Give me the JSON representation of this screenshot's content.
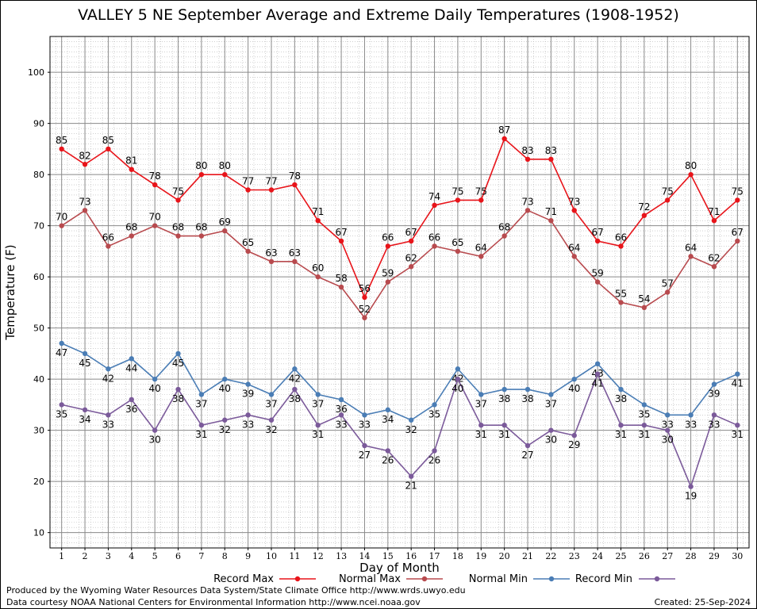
{
  "chart_data": {
    "type": "line",
    "title": "VALLEY 5 NE September Average and Extreme Daily Temperatures (1908-1952)",
    "xlabel": "Day of Month",
    "ylabel": "Temperature (F)",
    "ylim": [
      7,
      107
    ],
    "yticks": [
      10,
      20,
      30,
      40,
      50,
      60,
      70,
      80,
      90,
      100
    ],
    "grid": true,
    "legend_position": "bottom",
    "x": [
      1,
      2,
      3,
      4,
      5,
      6,
      7,
      8,
      9,
      10,
      11,
      12,
      13,
      14,
      15,
      16,
      17,
      18,
      19,
      20,
      21,
      22,
      23,
      24,
      25,
      26,
      27,
      28,
      29,
      30
    ],
    "series": [
      {
        "name": "Record Max",
        "color": "#e8141a",
        "label_pos": "above",
        "values": [
          85,
          82,
          85,
          81,
          78,
          75,
          80,
          80,
          77,
          77,
          78,
          71,
          67,
          56,
          66,
          67,
          74,
          75,
          75,
          87,
          83,
          83,
          73,
          67,
          66,
          72,
          75,
          80,
          71,
          75
        ]
      },
      {
        "name": "Normal Max",
        "color": "#b84a4e",
        "label_pos": "above",
        "values": [
          70,
          73,
          66,
          68,
          70,
          68,
          68,
          69,
          65,
          63,
          63,
          60,
          58,
          52,
          59,
          62,
          66,
          65,
          64,
          68,
          73,
          71,
          64,
          59,
          55,
          54,
          57,
          64,
          62,
          67
        ]
      },
      {
        "name": "Normal Min",
        "color": "#4a7db5",
        "label_pos": "below",
        "values": [
          47,
          45,
          42,
          44,
          40,
          45,
          37,
          40,
          39,
          37,
          42,
          37,
          36,
          33,
          34,
          32,
          35,
          42,
          37,
          38,
          38,
          37,
          40,
          43,
          38,
          35,
          33,
          33,
          39,
          41
        ]
      },
      {
        "name": "Record Min",
        "color": "#7b5a9a",
        "label_pos": "below",
        "values": [
          35,
          34,
          33,
          36,
          30,
          38,
          31,
          32,
          33,
          32,
          38,
          31,
          33,
          27,
          26,
          21,
          26,
          40,
          31,
          31,
          27,
          30,
          29,
          41,
          31,
          31,
          30,
          19,
          33,
          31
        ]
      }
    ]
  },
  "footer": {
    "credit1": "Produced by the Wyoming Water Resources Data System/State Climate Office http://www.wrds.uwyo.edu",
    "credit2": "Data courtesy NOAA National Centers for Environmental Information http://www.ncei.noaa.gov",
    "created": "Created:  25-Sep-2024"
  }
}
